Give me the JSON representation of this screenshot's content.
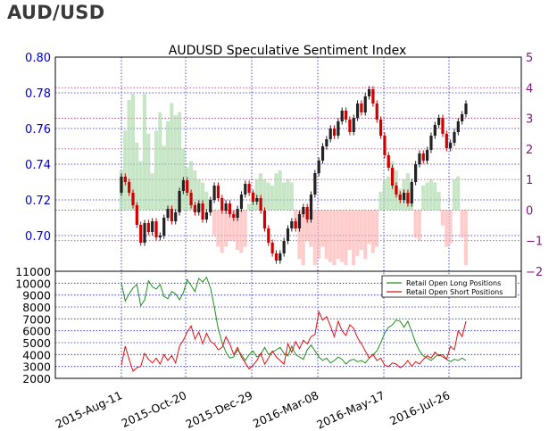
{
  "pair_label": "AUD/USD",
  "chart_data": [
    {
      "type": "line",
      "title": "AUDUSD Speculative Sentiment Index",
      "x_tick_labels": [
        "2015-Aug-11",
        "2015-Oct-20",
        "2015-Dec-29",
        "2016-Mar-08",
        "2016-May-17",
        "2016-Jul-26"
      ],
      "price_axis": {
        "side": "left",
        "ylim": [
          0.68,
          0.8
        ],
        "ticks": [
          "0.80",
          "0.78",
          "0.76",
          "0.74",
          "0.72",
          "0.70"
        ],
        "color": "#0000cc"
      },
      "sentiment_axis": {
        "side": "right",
        "ylim": [
          -2,
          5
        ],
        "ticks": [
          "5",
          "4",
          "3",
          "2",
          "1",
          "0",
          "−1",
          "−2"
        ],
        "color": "#7a1a7a"
      },
      "grid": true,
      "candles": [
        {
          "t": 0,
          "o": 0.724,
          "c": 0.733
        },
        {
          "t": 1,
          "o": 0.733,
          "c": 0.73
        },
        {
          "t": 2,
          "o": 0.73,
          "c": 0.724
        },
        {
          "t": 3,
          "o": 0.724,
          "c": 0.717
        },
        {
          "t": 4,
          "o": 0.717,
          "c": 0.706
        },
        {
          "t": 5,
          "o": 0.706,
          "c": 0.696
        },
        {
          "t": 6,
          "o": 0.696,
          "c": 0.707
        },
        {
          "t": 7,
          "o": 0.707,
          "c": 0.702
        },
        {
          "t": 8,
          "o": 0.702,
          "c": 0.708
        },
        {
          "t": 9,
          "o": 0.708,
          "c": 0.699
        },
        {
          "t": 10,
          "o": 0.699,
          "c": 0.7
        },
        {
          "t": 11,
          "o": 0.7,
          "c": 0.71
        },
        {
          "t": 12,
          "o": 0.71,
          "c": 0.715
        },
        {
          "t": 13,
          "o": 0.715,
          "c": 0.708
        },
        {
          "t": 14,
          "o": 0.708,
          "c": 0.713
        },
        {
          "t": 15,
          "o": 0.713,
          "c": 0.725
        },
        {
          "t": 16,
          "o": 0.725,
          "c": 0.731
        },
        {
          "t": 17,
          "o": 0.731,
          "c": 0.724
        },
        {
          "t": 18,
          "o": 0.724,
          "c": 0.717
        },
        {
          "t": 19,
          "o": 0.717,
          "c": 0.713
        },
        {
          "t": 20,
          "o": 0.713,
          "c": 0.718
        },
        {
          "t": 21,
          "o": 0.718,
          "c": 0.709
        },
        {
          "t": 22,
          "o": 0.709,
          "c": 0.713
        },
        {
          "t": 23,
          "o": 0.713,
          "c": 0.72
        },
        {
          "t": 24,
          "o": 0.72,
          "c": 0.728
        },
        {
          "t": 25,
          "o": 0.728,
          "c": 0.721
        },
        {
          "t": 26,
          "o": 0.721,
          "c": 0.714
        },
        {
          "t": 27,
          "o": 0.714,
          "c": 0.718
        },
        {
          "t": 28,
          "o": 0.718,
          "c": 0.712
        },
        {
          "t": 29,
          "o": 0.712,
          "c": 0.71
        },
        {
          "t": 30,
          "o": 0.71,
          "c": 0.715
        },
        {
          "t": 31,
          "o": 0.715,
          "c": 0.723
        },
        {
          "t": 32,
          "o": 0.723,
          "c": 0.729
        },
        {
          "t": 33,
          "o": 0.729,
          "c": 0.724
        },
        {
          "t": 34,
          "o": 0.724,
          "c": 0.719
        },
        {
          "t": 35,
          "o": 0.719,
          "c": 0.721
        },
        {
          "t": 36,
          "o": 0.721,
          "c": 0.714
        },
        {
          "t": 37,
          "o": 0.714,
          "c": 0.704
        },
        {
          "t": 38,
          "o": 0.704,
          "c": 0.696
        },
        {
          "t": 39,
          "o": 0.696,
          "c": 0.69
        },
        {
          "t": 40,
          "o": 0.69,
          "c": 0.686
        },
        {
          "t": 41,
          "o": 0.686,
          "c": 0.69
        },
        {
          "t": 42,
          "o": 0.69,
          "c": 0.697
        },
        {
          "t": 43,
          "o": 0.697,
          "c": 0.704
        },
        {
          "t": 44,
          "o": 0.704,
          "c": 0.708
        },
        {
          "t": 45,
          "o": 0.708,
          "c": 0.704
        },
        {
          "t": 46,
          "o": 0.704,
          "c": 0.712
        },
        {
          "t": 47,
          "o": 0.712,
          "c": 0.716
        },
        {
          "t": 48,
          "o": 0.716,
          "c": 0.709
        },
        {
          "t": 49,
          "o": 0.709,
          "c": 0.723
        },
        {
          "t": 50,
          "o": 0.723,
          "c": 0.735
        },
        {
          "t": 51,
          "o": 0.735,
          "c": 0.742
        },
        {
          "t": 52,
          "o": 0.742,
          "c": 0.75
        },
        {
          "t": 53,
          "o": 0.75,
          "c": 0.754
        },
        {
          "t": 54,
          "o": 0.754,
          "c": 0.76
        },
        {
          "t": 55,
          "o": 0.76,
          "c": 0.756
        },
        {
          "t": 56,
          "o": 0.756,
          "c": 0.764
        },
        {
          "t": 57,
          "o": 0.764,
          "c": 0.77
        },
        {
          "t": 58,
          "o": 0.77,
          "c": 0.765
        },
        {
          "t": 59,
          "o": 0.765,
          "c": 0.758
        },
        {
          "t": 60,
          "o": 0.758,
          "c": 0.766
        },
        {
          "t": 61,
          "o": 0.766,
          "c": 0.774
        },
        {
          "t": 62,
          "o": 0.774,
          "c": 0.769
        },
        {
          "t": 63,
          "o": 0.769,
          "c": 0.778
        },
        {
          "t": 64,
          "o": 0.778,
          "c": 0.782
        },
        {
          "t": 65,
          "o": 0.782,
          "c": 0.774
        },
        {
          "t": 66,
          "o": 0.774,
          "c": 0.765
        },
        {
          "t": 67,
          "o": 0.765,
          "c": 0.756
        },
        {
          "t": 68,
          "o": 0.756,
          "c": 0.745
        },
        {
          "t": 69,
          "o": 0.745,
          "c": 0.738
        },
        {
          "t": 70,
          "o": 0.738,
          "c": 0.728
        },
        {
          "t": 71,
          "o": 0.728,
          "c": 0.723
        },
        {
          "t": 72,
          "o": 0.723,
          "c": 0.72
        },
        {
          "t": 73,
          "o": 0.72,
          "c": 0.724
        },
        {
          "t": 74,
          "o": 0.724,
          "c": 0.718
        },
        {
          "t": 75,
          "o": 0.718,
          "c": 0.73
        },
        {
          "t": 76,
          "o": 0.73,
          "c": 0.74
        },
        {
          "t": 77,
          "o": 0.74,
          "c": 0.746
        },
        {
          "t": 78,
          "o": 0.746,
          "c": 0.742
        },
        {
          "t": 79,
          "o": 0.742,
          "c": 0.748
        },
        {
          "t": 80,
          "o": 0.748,
          "c": 0.756
        },
        {
          "t": 81,
          "o": 0.756,
          "c": 0.762
        },
        {
          "t": 82,
          "o": 0.762,
          "c": 0.766
        },
        {
          "t": 83,
          "o": 0.766,
          "c": 0.757
        },
        {
          "t": 84,
          "o": 0.757,
          "c": 0.749
        },
        {
          "t": 85,
          "o": 0.749,
          "c": 0.752
        },
        {
          "t": 86,
          "o": 0.752,
          "c": 0.758
        },
        {
          "t": 87,
          "o": 0.758,
          "c": 0.764
        },
        {
          "t": 88,
          "o": 0.764,
          "c": 0.768
        },
        {
          "t": 89,
          "o": 0.768,
          "c": 0.774
        }
      ],
      "sentiment_bars": {
        "baseline": 0,
        "values": [
          1.3,
          2.6,
          3.6,
          3.8,
          2.2,
          1.6,
          3.8,
          2.5,
          1.2,
          2.6,
          3.2,
          2.1,
          2.9,
          3.5,
          3.1,
          3.2,
          2.0,
          1.4,
          1.6,
          1.3,
          1.0,
          0.9,
          0.6,
          0.3,
          -0.8,
          -1.2,
          -1.4,
          -1.2,
          -1.0,
          -1.0,
          -1.3,
          -1.4,
          -1.2,
          0.2,
          0.6,
          1.0,
          1.2,
          1.0,
          0.9,
          0.8,
          1.2,
          1.3,
          0.9,
          1.0,
          0.9,
          -0.6,
          -1.6,
          -1.8,
          -1.0,
          -1.2,
          -1.8,
          -1.6,
          -1.2,
          -1.6,
          -1.7,
          -1.8,
          -1.6,
          -1.7,
          -1.8,
          -1.3,
          -1.8,
          -1.5,
          -1.3,
          -1.6,
          -1.1,
          -1.4,
          -1.2,
          0.6,
          1.0,
          1.1,
          1.6,
          1.3,
          0.7,
          1.0,
          1.2,
          0.7,
          -0.9,
          -1.0,
          0.8,
          0.9,
          1.0,
          0.9,
          0.6,
          -0.5,
          -1.2,
          -1.1,
          1.0,
          1.1,
          -0.9,
          -1.8
        ]
      }
    },
    {
      "type": "line",
      "x_tick_labels": [
        "2015-Aug-11",
        "2015-Oct-20",
        "2015-Dec-29",
        "2016-Mar-08",
        "2016-May-17",
        "2016-Jul-26"
      ],
      "ylim": [
        2000,
        11000
      ],
      "y_ticks": [
        "11000",
        "10000",
        "9000",
        "8000",
        "7000",
        "6000",
        "5000",
        "4000",
        "3000",
        "2000"
      ],
      "grid": true,
      "legend_position": "top-right",
      "series": [
        {
          "name": "Retail Open Long Positions",
          "color": "#1f8f1f",
          "values": [
            10000,
            8500,
            9100,
            9600,
            9900,
            8100,
            8600,
            10200,
            9700,
            9500,
            9900,
            8900,
            8700,
            9300,
            9100,
            8600,
            9200,
            10300,
            9800,
            9300,
            10400,
            10100,
            10500,
            9600,
            8000,
            6200,
            5000,
            4200,
            3700,
            3800,
            4400,
            4000,
            3500,
            4000,
            4300,
            3800,
            4000,
            4600,
            4000,
            4200,
            4400,
            4600,
            4100,
            3900,
            4700,
            4000,
            3800,
            3600,
            4400,
            4800,
            4300,
            3800,
            3500,
            3700,
            3300,
            3500,
            3800,
            3600,
            3200,
            3500,
            3600,
            3400,
            3500,
            3300,
            3700,
            4000,
            4300,
            5000,
            5800,
            6300,
            6500,
            6900,
            6800,
            6300,
            6800,
            5900,
            5000,
            4300,
            3900,
            3700,
            3500,
            3800,
            4000,
            3800,
            3600,
            3400,
            3600,
            3500,
            3700,
            3500
          ]
        },
        {
          "name": "Retail Open Short Positions",
          "color": "#e01010",
          "values": [
            3100,
            4700,
            3600,
            2600,
            2900,
            3000,
            4100,
            3600,
            3300,
            3700,
            3200,
            4000,
            3500,
            3900,
            3300,
            4700,
            5200,
            5900,
            6400,
            5300,
            5900,
            4900,
            5800,
            5100,
            4900,
            4400,
            4600,
            5500,
            4900,
            4000,
            4600,
            3800,
            3300,
            2800,
            3100,
            3500,
            4100,
            3200,
            3700,
            4300,
            3800,
            3500,
            3200,
            4900,
            4200,
            5100,
            4500,
            5200,
            4900,
            5500,
            5700,
            7600,
            6900,
            7200,
            6400,
            5500,
            6800,
            6000,
            5600,
            6500,
            6200,
            5400,
            4900,
            4300,
            3700,
            4000,
            3500,
            3700,
            3100,
            3000,
            3300,
            3200,
            2900,
            3100,
            3500,
            3000,
            3400,
            3200,
            3600,
            3900,
            3700,
            4200,
            3900,
            4000,
            3600,
            4700,
            4400,
            6000,
            5500,
            6800
          ]
        }
      ]
    }
  ]
}
